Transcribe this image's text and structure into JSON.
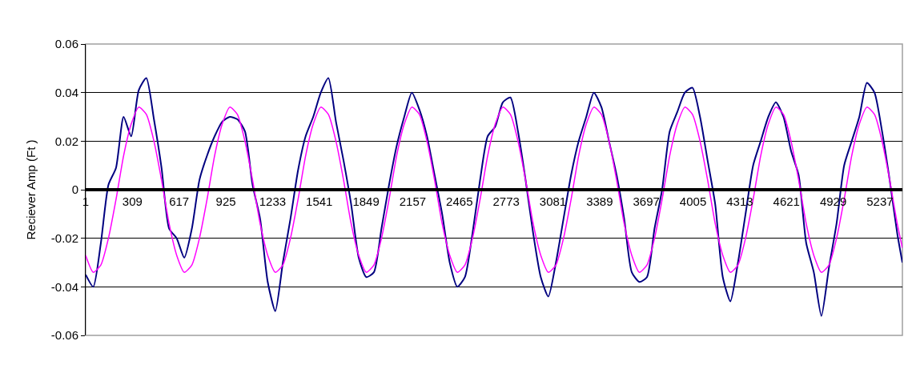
{
  "chart_data": {
    "type": "line",
    "ylabel": "Reciever Amp (Ft )",
    "x": [
      1,
      51,
      101,
      151,
      201,
      251,
      301,
      351,
      401,
      451,
      501,
      551,
      601,
      651,
      701,
      751,
      801,
      851,
      901,
      951,
      1001,
      1051,
      1101,
      1151,
      1201,
      1251,
      1301,
      1351,
      1401,
      1451,
      1501,
      1551,
      1601,
      1651,
      1701,
      1751,
      1801,
      1851,
      1901,
      1951,
      2001,
      2051,
      2101,
      2151,
      2201,
      2251,
      2301,
      2351,
      2401,
      2451,
      2501,
      2551,
      2601,
      2651,
      2701,
      2751,
      2801,
      2851,
      2901,
      2951,
      3001,
      3051,
      3101,
      3151,
      3201,
      3251,
      3301,
      3351,
      3401,
      3451,
      3501,
      3551,
      3601,
      3651,
      3701,
      3751,
      3801,
      3851,
      3901,
      3951,
      4001,
      4051,
      4101,
      4151,
      4201,
      4251,
      4301,
      4351,
      4401,
      4451,
      4501,
      4551,
      4601,
      4651,
      4701,
      4751,
      4801,
      4851,
      4901,
      4951,
      5001,
      5051,
      5101,
      5151,
      5201,
      5251,
      5301,
      5351,
      5385
    ],
    "series": [
      {
        "color": "#000080",
        "values": [
          -0.035,
          -0.04,
          -0.022,
          0.002,
          0.009,
          0.03,
          0.022,
          0.041,
          0.046,
          0.029,
          0.009,
          -0.016,
          -0.02,
          -0.028,
          -0.016,
          0.004,
          0.014,
          0.022,
          0.028,
          0.03,
          0.029,
          0.024,
          0.002,
          -0.012,
          -0.038,
          -0.05,
          -0.03,
          -0.012,
          0.008,
          0.022,
          0.03,
          0.04,
          0.046,
          0.028,
          0.012,
          -0.006,
          -0.028,
          -0.036,
          -0.034,
          -0.016,
          0.002,
          0.018,
          0.03,
          0.04,
          0.033,
          0.022,
          0.006,
          -0.01,
          -0.03,
          -0.04,
          -0.036,
          -0.018,
          0.004,
          0.022,
          0.026,
          0.036,
          0.038,
          0.024,
          0.004,
          -0.018,
          -0.036,
          -0.044,
          -0.03,
          -0.012,
          0.006,
          0.02,
          0.03,
          0.04,
          0.034,
          0.02,
          0.006,
          -0.012,
          -0.034,
          -0.038,
          -0.036,
          -0.016,
          0.0,
          0.024,
          0.032,
          0.04,
          0.042,
          0.03,
          0.012,
          -0.006,
          -0.036,
          -0.046,
          -0.03,
          -0.01,
          0.01,
          0.02,
          0.03,
          0.036,
          0.03,
          0.016,
          0.006,
          -0.022,
          -0.034,
          -0.052,
          -0.032,
          -0.014,
          0.01,
          0.02,
          0.03,
          0.044,
          0.04,
          0.024,
          0.004,
          -0.018,
          -0.03
        ]
      },
      {
        "color": "#ff00ff",
        "values": [
          -0.027,
          -0.034,
          -0.031,
          -0.02,
          -0.004,
          0.014,
          0.027,
          0.034,
          0.031,
          0.02,
          0.004,
          -0.014,
          -0.027,
          -0.034,
          -0.031,
          -0.02,
          -0.004,
          0.014,
          0.027,
          0.034,
          0.031,
          0.02,
          0.004,
          -0.014,
          -0.027,
          -0.034,
          -0.031,
          -0.02,
          -0.004,
          0.014,
          0.027,
          0.034,
          0.031,
          0.02,
          0.004,
          -0.014,
          -0.027,
          -0.034,
          -0.031,
          -0.02,
          -0.004,
          0.014,
          0.027,
          0.034,
          0.031,
          0.02,
          0.004,
          -0.014,
          -0.027,
          -0.034,
          -0.031,
          -0.02,
          -0.004,
          0.014,
          0.027,
          0.034,
          0.031,
          0.02,
          0.004,
          -0.014,
          -0.027,
          -0.034,
          -0.031,
          -0.02,
          -0.004,
          0.014,
          0.027,
          0.034,
          0.031,
          0.02,
          0.004,
          -0.014,
          -0.027,
          -0.034,
          -0.031,
          -0.02,
          -0.004,
          0.014,
          0.027,
          0.034,
          0.031,
          0.02,
          0.004,
          -0.014,
          -0.027,
          -0.034,
          -0.031,
          -0.02,
          -0.004,
          0.014,
          0.027,
          0.034,
          0.031,
          0.02,
          0.004,
          -0.014,
          -0.027,
          -0.034,
          -0.031,
          -0.02,
          -0.004,
          0.014,
          0.027,
          0.034,
          0.031,
          0.02,
          0.004,
          -0.014,
          -0.024
        ]
      }
    ],
    "xlim": [
      1,
      5385
    ],
    "xticks": [
      1,
      309,
      617,
      925,
      1233,
      1541,
      1849,
      2157,
      2465,
      2773,
      3081,
      3389,
      3697,
      4005,
      4313,
      4621,
      4929,
      5237
    ],
    "ylim": [
      -0.06,
      0.06
    ],
    "yticks": [
      -0.06,
      -0.04,
      -0.02,
      0,
      0.02,
      0.04,
      0.06
    ],
    "grid": "y",
    "marker": "none",
    "line_style": "solid"
  }
}
